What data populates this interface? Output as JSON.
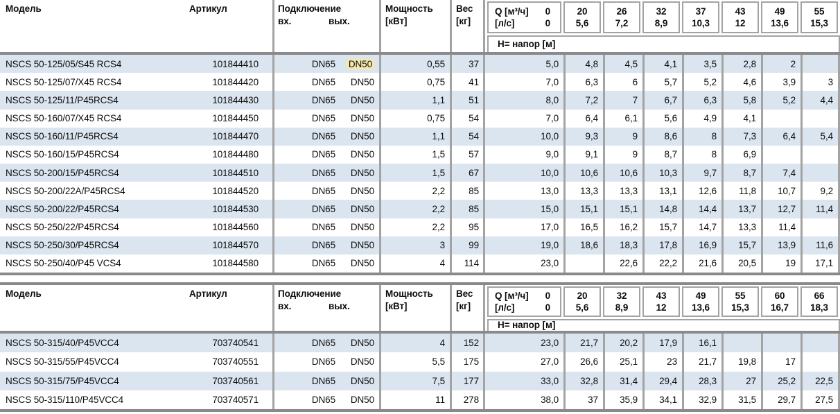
{
  "colors": {
    "stripe": "#dbe5f0",
    "grid_line": "#a3a3a3",
    "heavy_line": "#8a8a8a",
    "highlight": "#f4e8ad"
  },
  "tables": [
    {
      "columns": {
        "model": "Модель",
        "article": "Артикул",
        "connection": "Подключение",
        "inlet": "вх.",
        "outlet": "вых.",
        "power": "Мощность",
        "power_unit": "[кВт]",
        "weight": "Вес",
        "weight_unit": "[кг]"
      },
      "q_header": {
        "flow_label": "Q [м³/ч]",
        "flow_zero": "0",
        "ls_label": "[л/с]",
        "ls_zero": "0",
        "flow": [
          "20",
          "26",
          "32",
          "37",
          "43",
          "49",
          "55"
        ],
        "ls": [
          "5,6",
          "7,2",
          "8,9",
          "10,3",
          "12",
          "13,6",
          "15,3"
        ]
      },
      "head_label": "H= напор [м]",
      "rows": [
        {
          "model": "NSCS 50-125/05/S45 RCS4",
          "article": "101844410",
          "inlet": "DN65",
          "outlet": "DN50",
          "outlet_highlighted": true,
          "power": "0,55",
          "weight": "37",
          "heads": [
            "5,0",
            "4,8",
            "4,5",
            "4,1",
            "3,5",
            "2,8",
            "2",
            ""
          ]
        },
        {
          "model": "NSCS 50-125/07/X45 RCS4",
          "article": "101844420",
          "inlet": "DN65",
          "outlet": "DN50",
          "power": "0,75",
          "weight": "41",
          "heads": [
            "7,0",
            "6,3",
            "6",
            "5,7",
            "5,2",
            "4,6",
            "3,9",
            "3"
          ]
        },
        {
          "model": "NSCS 50-125/11/P45RCS4",
          "article": "101844430",
          "inlet": "DN65",
          "outlet": "DN50",
          "power": "1,1",
          "weight": "51",
          "heads": [
            "8,0",
            "7,2",
            "7",
            "6,7",
            "6,3",
            "5,8",
            "5,2",
            "4,4"
          ]
        },
        {
          "model": "NSCS 50-160/07/X45 RCS4",
          "article": "101844450",
          "inlet": "DN65",
          "outlet": "DN50",
          "power": "0,75",
          "weight": "54",
          "heads": [
            "7,0",
            "6,4",
            "6,1",
            "5,6",
            "4,9",
            "4,1",
            "",
            ""
          ]
        },
        {
          "model": "NSCS 50-160/11/P45RCS4",
          "article": "101844470",
          "inlet": "DN65",
          "outlet": "DN50",
          "power": "1,1",
          "weight": "54",
          "heads": [
            "10,0",
            "9,3",
            "9",
            "8,6",
            "8",
            "7,3",
            "6,4",
            "5,4"
          ]
        },
        {
          "model": "NSCS 50-160/15/P45RCS4",
          "article": "101844480",
          "inlet": "DN65",
          "outlet": "DN50",
          "power": "1,5",
          "weight": "57",
          "heads": [
            "9,0",
            "9,1",
            "9",
            "8,7",
            "8",
            "6,9",
            "",
            ""
          ]
        },
        {
          "model": "NSCS 50-200/15/P45RCS4",
          "article": "101844510",
          "inlet": "DN65",
          "outlet": "DN50",
          "power": "1,5",
          "weight": "67",
          "heads": [
            "10,0",
            "10,6",
            "10,6",
            "10,3",
            "9,7",
            "8,7",
            "7,4",
            ""
          ]
        },
        {
          "model": "NSCS 50-200/22A/P45RCS4",
          "article": "101844520",
          "inlet": "DN65",
          "outlet": "DN50",
          "power": "2,2",
          "weight": "85",
          "heads": [
            "13,0",
            "13,3",
            "13,3",
            "13,1",
            "12,6",
            "11,8",
            "10,7",
            "9,2"
          ]
        },
        {
          "model": "NSCS 50-200/22/P45RCS4",
          "article": "101844530",
          "inlet": "DN65",
          "outlet": "DN50",
          "power": "2,2",
          "weight": "85",
          "heads": [
            "15,0",
            "15,1",
            "15,1",
            "14,8",
            "14,4",
            "13,7",
            "12,7",
            "11,4"
          ]
        },
        {
          "model": "NSCS 50-250/22/P45RCS4",
          "article": "101844560",
          "inlet": "DN65",
          "outlet": "DN50",
          "power": "2,2",
          "weight": "95",
          "heads": [
            "17,0",
            "16,5",
            "16,2",
            "15,7",
            "14,7",
            "13,3",
            "11,4",
            ""
          ]
        },
        {
          "model": "NSCS 50-250/30/P45RCS4",
          "article": "101844570",
          "inlet": "DN65",
          "outlet": "DN50",
          "power": "3",
          "weight": "99",
          "heads": [
            "19,0",
            "18,6",
            "18,3",
            "17,8",
            "16,9",
            "15,7",
            "13,9",
            "11,6"
          ]
        },
        {
          "model": "NSCS 50-250/40/P45 VCS4",
          "article": "101844580",
          "inlet": "DN65",
          "outlet": "DN50",
          "power": "4",
          "weight": "114",
          "heads": [
            "23,0",
            "",
            "22,6",
            "22,2",
            "21,6",
            "20,5",
            "19",
            "17,1"
          ]
        }
      ]
    },
    {
      "columns": {
        "model": "Модель",
        "article": "Артикул",
        "connection": "Подключение",
        "inlet": "вх.",
        "outlet": "вых.",
        "power": "Мощность",
        "power_unit": "[кВт]",
        "weight": "Вес",
        "weight_unit": "[кг]"
      },
      "q_header": {
        "flow_label": "Q [м³/ч]",
        "flow_zero": "0",
        "ls_label": "[л/с]",
        "ls_zero": "0",
        "flow": [
          "20",
          "32",
          "43",
          "49",
          "55",
          "60",
          "66"
        ],
        "ls": [
          "5,6",
          "8,9",
          "12",
          "13,6",
          "15,3",
          "16,7",
          "18,3"
        ]
      },
      "head_label": "H= напор [м]",
      "rows": [
        {
          "model": "NSCS 50-315/40/P45VCC4",
          "article": "703740541",
          "inlet": "DN65",
          "outlet": "DN50",
          "power": "4",
          "weight": "152",
          "heads": [
            "23,0",
            "21,7",
            "20,2",
            "17,9",
            "16,1",
            "",
            "",
            ""
          ]
        },
        {
          "model": "NSCS 50-315/55/P45VCC4",
          "article": "703740551",
          "inlet": "DN65",
          "outlet": "DN50",
          "power": "5,5",
          "weight": "175",
          "heads": [
            "27,0",
            "26,6",
            "25,1",
            "23",
            "21,7",
            "19,8",
            "17",
            ""
          ]
        },
        {
          "model": "NSCS 50-315/75/P45VCC4",
          "article": "703740561",
          "inlet": "DN65",
          "outlet": "DN50",
          "power": "7,5",
          "weight": "177",
          "heads": [
            "33,0",
            "32,8",
            "31,4",
            "29,4",
            "28,3",
            "27",
            "25,2",
            "22,5"
          ]
        },
        {
          "model": "NSCS 50-315/110/P45VCC4",
          "article": "703740571",
          "inlet": "DN65",
          "outlet": "DN50",
          "power": "11",
          "weight": "278",
          "heads": [
            "38,0",
            "37",
            "35,9",
            "34,1",
            "32,9",
            "31,5",
            "29,7",
            "27,5"
          ]
        }
      ]
    }
  ]
}
